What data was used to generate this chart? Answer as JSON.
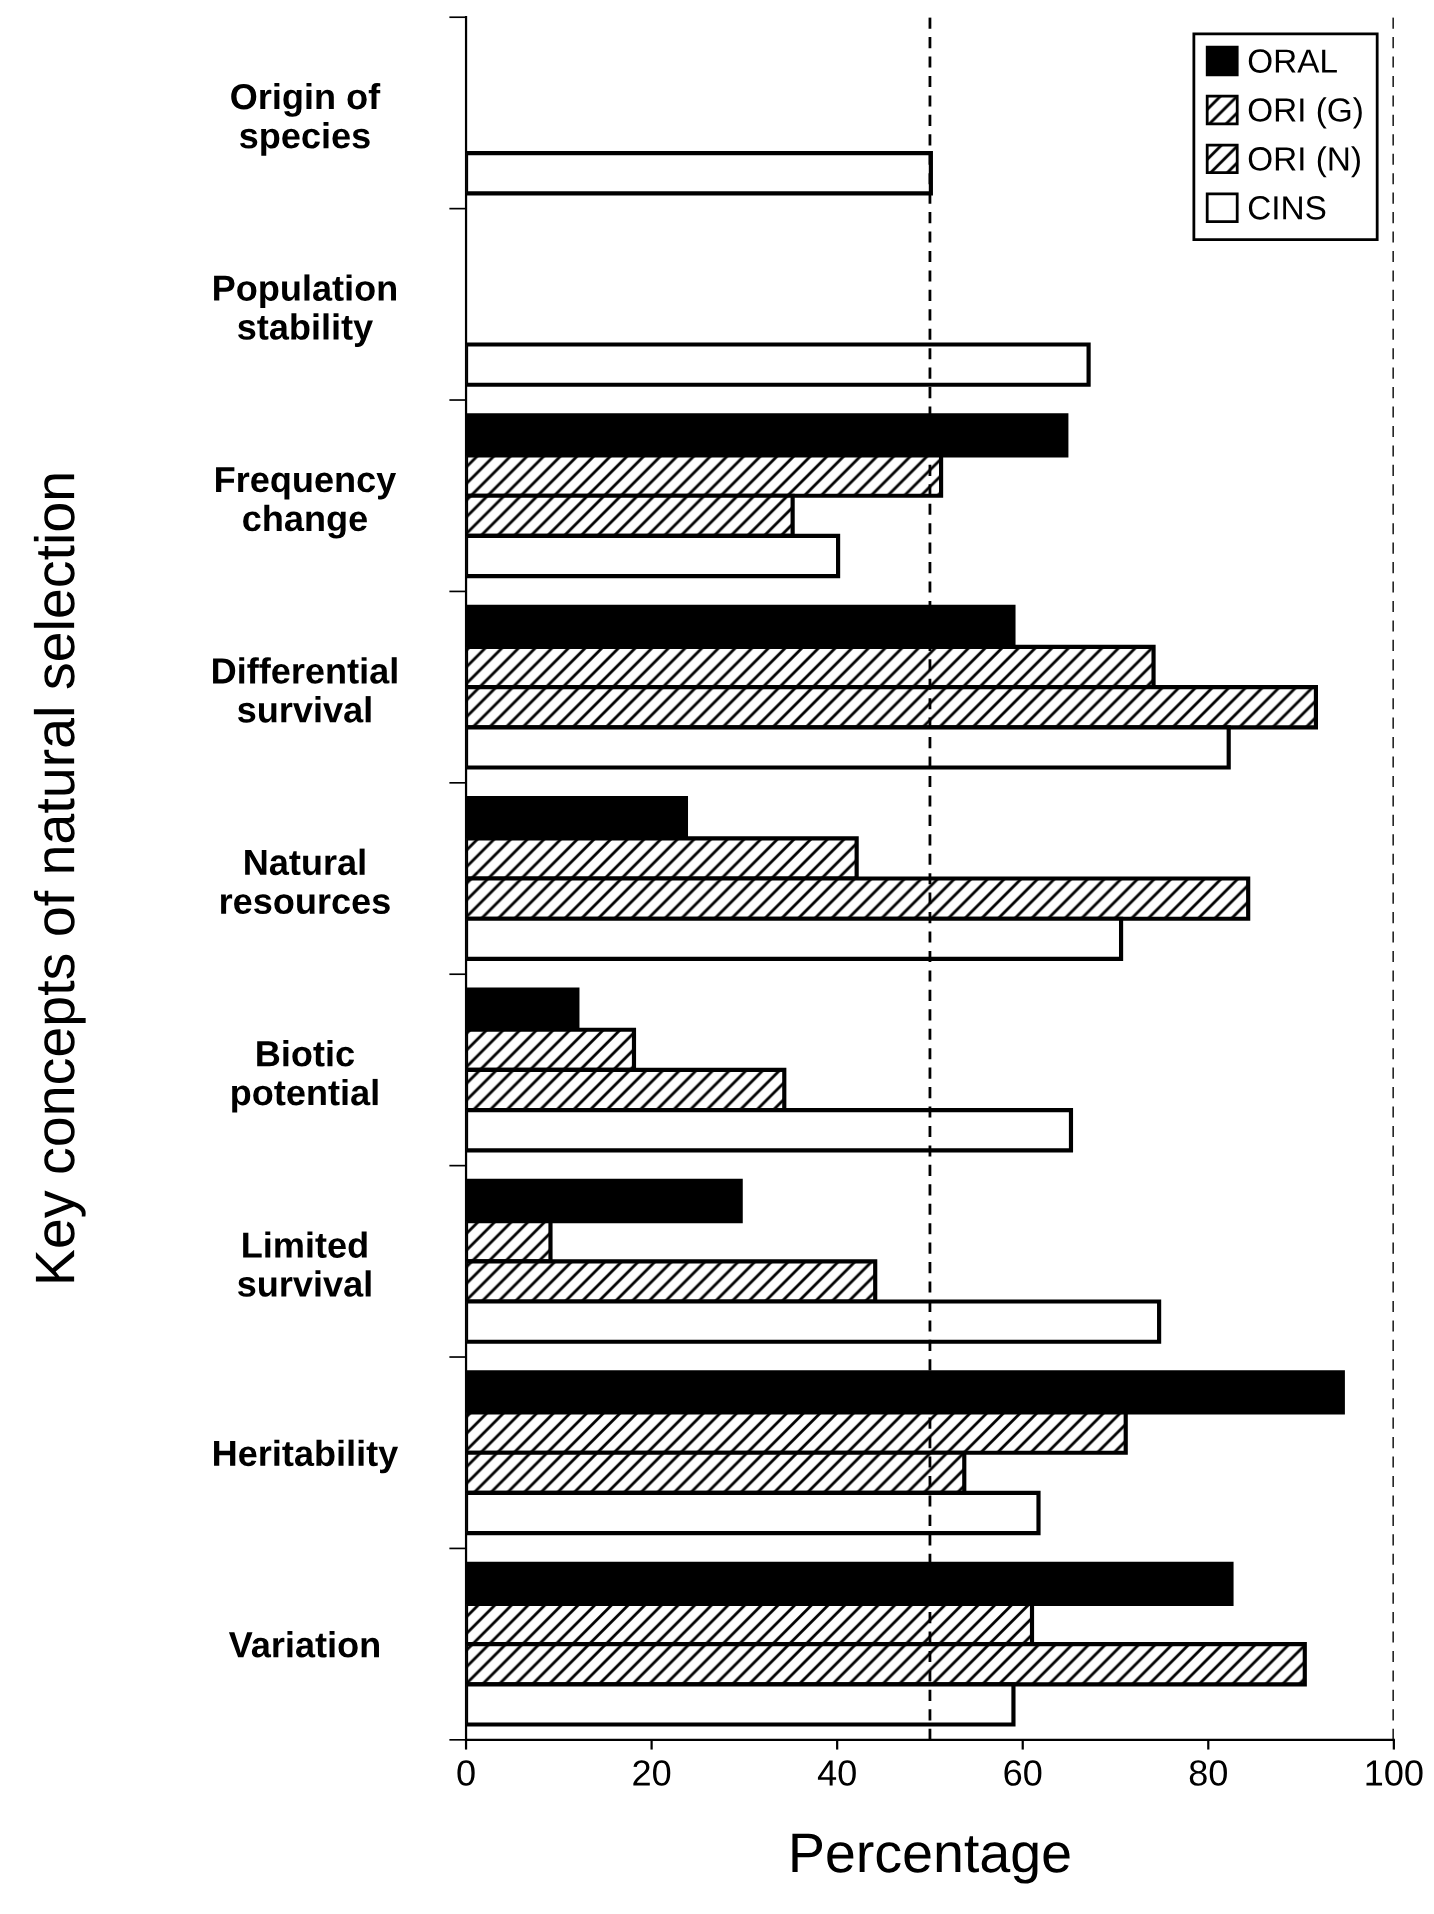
{
  "chart_data": {
    "type": "bar",
    "orientation": "horizontal",
    "ylabel": "Key concepts of natural selection",
    "xlabel": "Percentage",
    "categories": [
      "Origin of\nspecies",
      "Population\nstability",
      "Frequency\nchange",
      "Differential\nsurvival",
      "Natural\nresources",
      "Biotic\npotential",
      "Limited\nsurvival",
      "Heritability",
      "Variation"
    ],
    "series": [
      {
        "name": "ORAL",
        "color": "#000000",
        "values": [
          null,
          null,
          64.7,
          59.0,
          23.7,
          12.0,
          29.6,
          94.5,
          82.5
        ]
      },
      {
        "name": "ORI (G)",
        "color": "#000000",
        "values": [
          null,
          null,
          51.2,
          74.1,
          42.1,
          18.1,
          9.1,
          71.1,
          61.0
        ]
      },
      {
        "name": "ORI (N)",
        "color": "#000000",
        "values": [
          null,
          null,
          35.2,
          91.6,
          84.3,
          34.3,
          44.1,
          53.7,
          90.4
        ]
      },
      {
        "name": "CINS",
        "color": "#ffffff",
        "values": [
          50.1,
          67.1,
          40.1,
          82.2,
          70.6,
          65.2,
          74.7,
          61.7,
          59.0
        ]
      }
    ],
    "xlim": [
      0,
      100
    ],
    "xticks": [
      0,
      20,
      40,
      60,
      80,
      100
    ],
    "ref_lines": [
      {
        "axis": "x",
        "value": 50,
        "line_style": "dashed",
        "color": "#000000"
      },
      {
        "axis": "x",
        "value": 100,
        "line_style": "dashed",
        "color": "#000000"
      }
    ],
    "legend": "top right",
    "grid": false
  }
}
